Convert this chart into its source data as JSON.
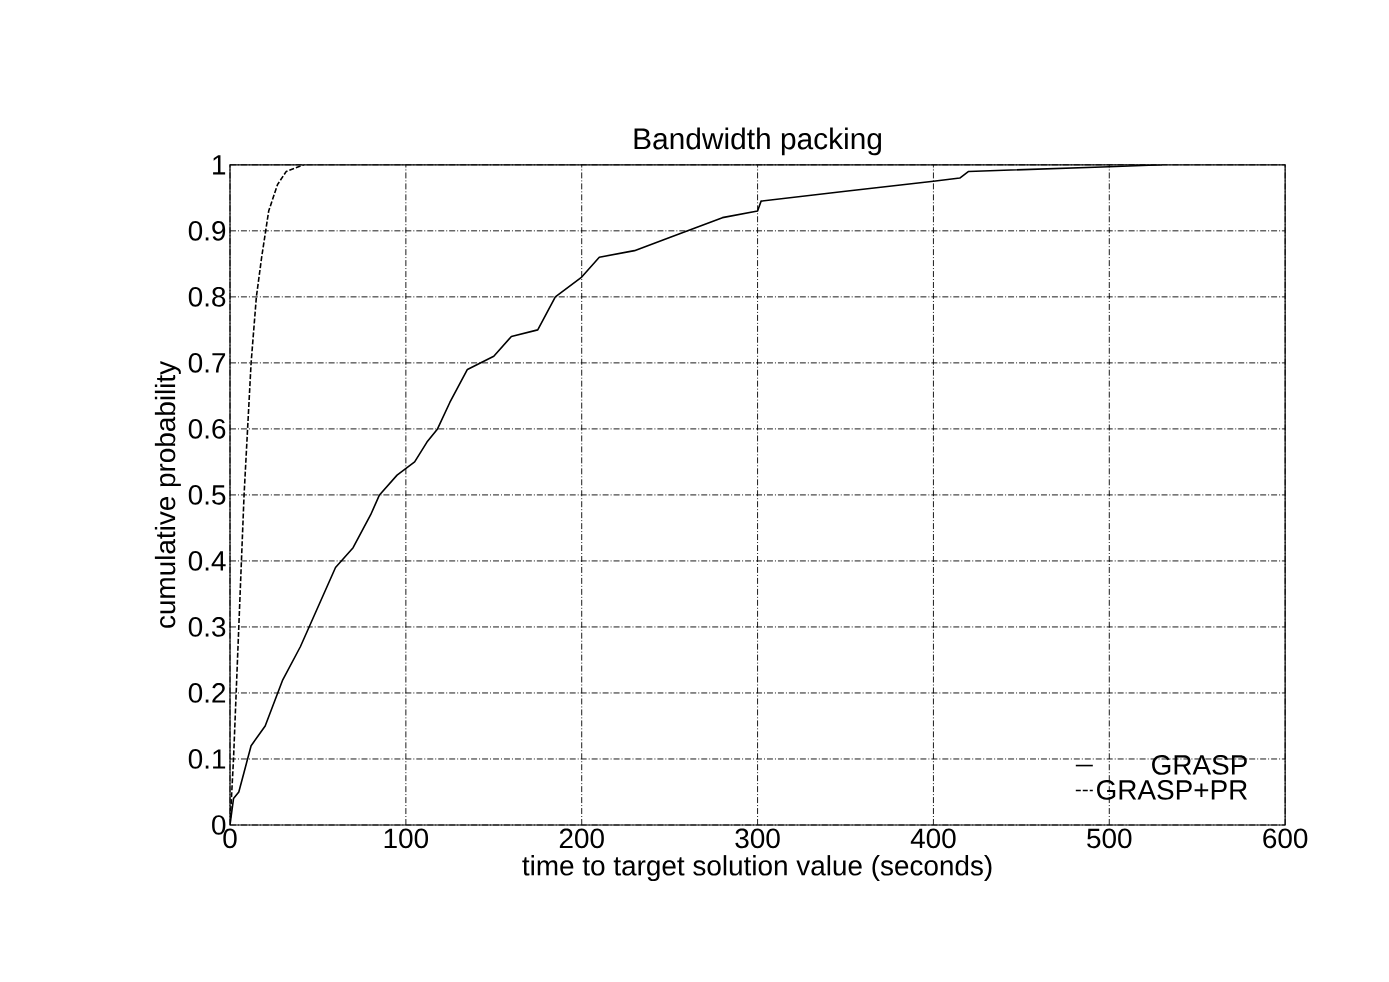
{
  "chart_data": {
    "type": "line",
    "title": "Bandwidth packing",
    "xlabel": "time to target solution value (seconds)",
    "ylabel": "cumulative probability",
    "xlim": [
      0,
      600
    ],
    "xticks": [
      0,
      100,
      200,
      300,
      400,
      500,
      600
    ],
    "ylim": [
      0,
      1
    ],
    "yticks": [
      0,
      0.1,
      0.2,
      0.3,
      0.4,
      0.5,
      0.6,
      0.7,
      0.8,
      0.9,
      1
    ],
    "grid": true,
    "legend": "bottom right",
    "marker": "none",
    "series": [
      {
        "name": "GRASP",
        "color": "#000000",
        "line_style": "solid",
        "x": [
          0,
          2,
          5,
          8,
          12,
          20,
          30,
          40,
          50,
          60,
          70,
          80,
          85,
          95,
          105,
          112,
          118,
          125,
          135,
          150,
          160,
          175,
          185,
          200,
          210,
          230,
          250,
          280,
          300,
          302,
          350,
          400,
          415,
          420,
          500,
          530
        ],
        "values": [
          0,
          0.04,
          0.05,
          0.08,
          0.12,
          0.15,
          0.22,
          0.27,
          0.33,
          0.39,
          0.42,
          0.47,
          0.5,
          0.53,
          0.55,
          0.58,
          0.6,
          0.64,
          0.69,
          0.71,
          0.74,
          0.75,
          0.8,
          0.83,
          0.86,
          0.87,
          0.89,
          0.92,
          0.93,
          0.945,
          0.96,
          0.975,
          0.98,
          0.99,
          0.997,
          1
        ]
      },
      {
        "name": "GRASP+PR",
        "color": "#000000",
        "line_style": "dashed",
        "x": [
          0,
          2,
          5,
          8,
          10,
          12,
          15,
          18,
          22,
          27,
          32,
          42
        ],
        "values": [
          0,
          0.1,
          0.3,
          0.5,
          0.6,
          0.7,
          0.8,
          0.86,
          0.93,
          0.97,
          0.99,
          1
        ]
      }
    ]
  }
}
